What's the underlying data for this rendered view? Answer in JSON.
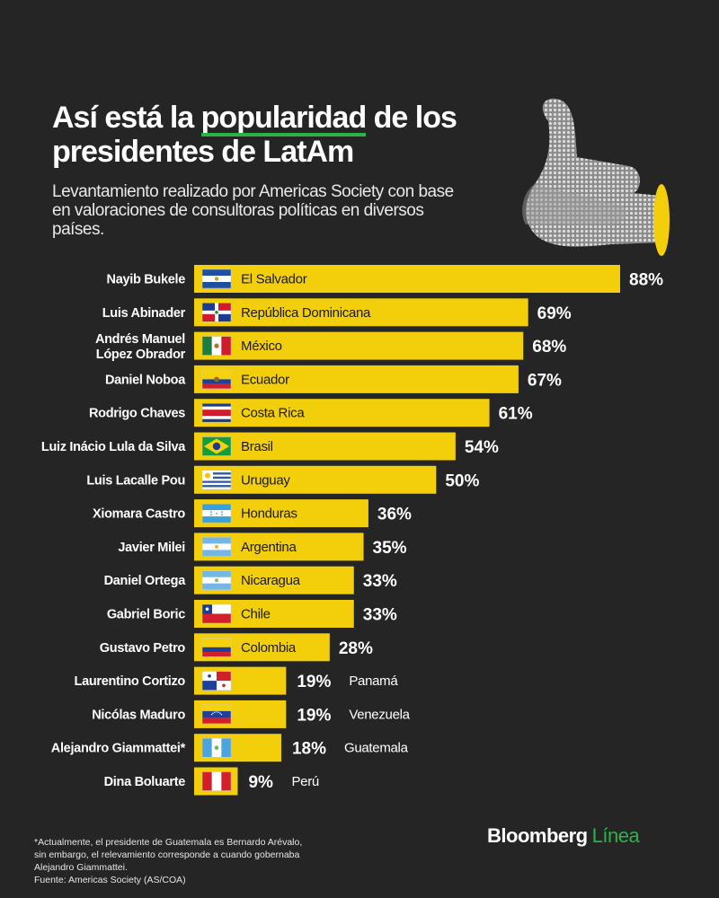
{
  "header": {
    "title_pre": "Así está la ",
    "title_highlight": "popularidad",
    "title_post": " de los presidentes de LatAm",
    "subtitle": "Levantamiento realizado por Americas Society con base en valoraciones de consultoras políticas en diversos países."
  },
  "colors": {
    "bar": "#f2cf0a",
    "background": "#252525",
    "text": "#ffffff",
    "accent": "#2bb34a"
  },
  "chart_data": {
    "type": "bar",
    "orientation": "horizontal",
    "xlim": [
      0,
      100
    ],
    "unit": "%",
    "rows": [
      {
        "president": "Nayib Bukele",
        "country": "El Salvador",
        "value": 88,
        "label": "88%",
        "flag": "el-salvador"
      },
      {
        "president": "Luis Abinader",
        "country": "República Dominicana",
        "value": 69,
        "label": "69%",
        "flag": "dominican-republic"
      },
      {
        "president": "Andrés Manuel López Obrador",
        "country": "México",
        "value": 68,
        "label": "68%",
        "flag": "mexico"
      },
      {
        "president": "Daniel Noboa",
        "country": "Ecuador",
        "value": 67,
        "label": "67%",
        "flag": "ecuador"
      },
      {
        "president": "Rodrigo Chaves",
        "country": "Costa Rica",
        "value": 61,
        "label": "61%",
        "flag": "costa-rica"
      },
      {
        "president": "Luiz Inácio Lula da Silva",
        "country": "Brasil",
        "value": 54,
        "label": "54%",
        "flag": "brazil"
      },
      {
        "president": "Luis Lacalle Pou",
        "country": "Uruguay",
        "value": 50,
        "label": "50%",
        "flag": "uruguay"
      },
      {
        "president": "Xiomara Castro",
        "country": "Honduras",
        "value": 36,
        "label": "36%",
        "flag": "honduras"
      },
      {
        "president": "Javier Milei",
        "country": "Argentina",
        "value": 35,
        "label": "35%",
        "flag": "argentina"
      },
      {
        "president": "Daniel Ortega",
        "country": "Nicaragua",
        "value": 33,
        "label": "33%",
        "flag": "nicaragua"
      },
      {
        "president": "Gabriel Boric",
        "country": "Chile",
        "value": 33,
        "label": "33%",
        "flag": "chile"
      },
      {
        "president": "Gustavo Petro",
        "country": "Colombia",
        "value": 28,
        "label": "28%",
        "flag": "colombia"
      },
      {
        "president": "Laurentino Cortizo",
        "country": "Panamá",
        "value": 19,
        "label": "19%",
        "flag": "panama"
      },
      {
        "president": "Nicólas Maduro",
        "country": "Venezuela",
        "value": 19,
        "label": "19%",
        "flag": "venezuela"
      },
      {
        "president": "Alejandro Giammattei*",
        "country": "Guatemala",
        "value": 18,
        "label": "18%",
        "flag": "guatemala"
      },
      {
        "president": "Dina Boluarte",
        "country": "Perú",
        "value": 9,
        "label": "9%",
        "flag": "peru"
      }
    ]
  },
  "footnote": {
    "line1": "*Actualmente, el presidente de Guatemala es Bernardo Arévalo,",
    "line2": "sin embargo, el relevamiento corresponde a cuando gobernaba",
    "line3": "Alejandro Giammattei.",
    "source": "Fuente: Americas Society (AS/COA)"
  },
  "brand": {
    "name": "Bloomberg",
    "suffix": "Línea"
  }
}
